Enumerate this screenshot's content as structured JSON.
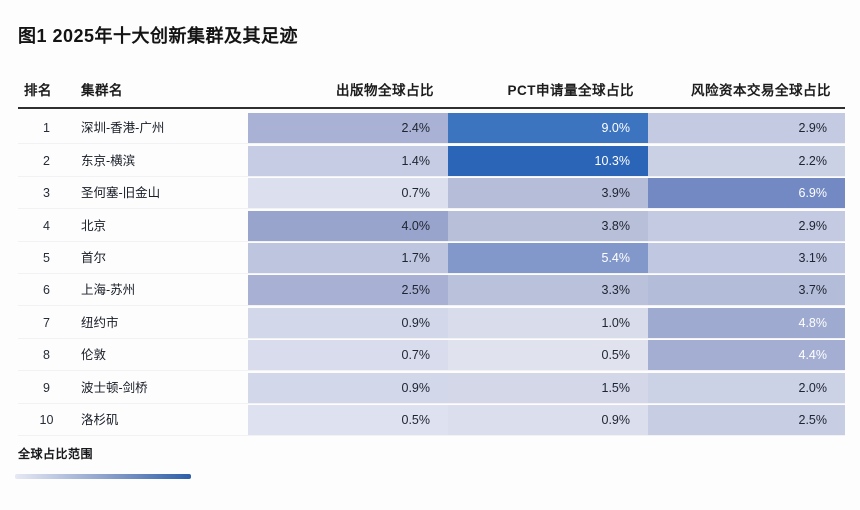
{
  "colors": {
    "page_bg": "#fdfdfe",
    "header_rule": "#2f2f2f",
    "text_dark": "#1e2430",
    "text_light": "#ffffff",
    "scale_min": "#e6e9f4",
    "scale_mid": "#8fa3cd",
    "scale_max": "#2b65b8"
  },
  "chart_data": {
    "type": "heatmap",
    "title": "图1 2025年十大创新集群及其足迹",
    "columns": [
      "排名",
      "集群名",
      "出版物全球占比",
      "PCT申请量全球占比",
      "风险资本交易全球占比"
    ],
    "legend_label": "全球占比范围",
    "legend_gradient": [
      "#e6e9f4",
      "#8fa3cd",
      "#2d5ea9"
    ],
    "value_format": "percent",
    "rows": [
      {
        "rank": "1",
        "name": "深圳-香港-广州",
        "values": [
          "2.4%",
          "9.0%",
          "2.9%"
        ],
        "values_num": [
          2.4,
          9.0,
          2.9
        ],
        "bg": [
          "#a9b2d4",
          "#3d74c0",
          "#c3cae2"
        ],
        "light": [
          false,
          true,
          false
        ]
      },
      {
        "rank": "2",
        "name": "东京-横滨",
        "values": [
          "1.4%",
          "10.3%",
          "2.2%"
        ],
        "values_num": [
          1.4,
          10.3,
          2.2
        ],
        "bg": [
          "#c6cce4",
          "#2b65b8",
          "#cbd1e5"
        ],
        "light": [
          false,
          true,
          false
        ]
      },
      {
        "rank": "3",
        "name": "圣何塞-旧金山",
        "values": [
          "0.7%",
          "3.9%",
          "6.9%"
        ],
        "values_num": [
          0.7,
          3.9,
          6.9
        ],
        "bg": [
          "#dbdfee",
          "#b6bdd8",
          "#7289c3"
        ],
        "light": [
          false,
          false,
          true
        ]
      },
      {
        "rank": "4",
        "name": "北京",
        "values": [
          "4.0%",
          "3.8%",
          "2.9%"
        ],
        "values_num": [
          4.0,
          3.8,
          2.9
        ],
        "bg": [
          "#99a4cc",
          "#b8bfd9",
          "#c3cae2"
        ],
        "light": [
          false,
          false,
          false
        ]
      },
      {
        "rank": "5",
        "name": "首尔",
        "values": [
          "1.7%",
          "5.4%",
          "3.1%"
        ],
        "values_num": [
          1.7,
          5.4,
          3.1
        ],
        "bg": [
          "#bec5df",
          "#8398ca",
          "#c0c7e0"
        ],
        "light": [
          false,
          true,
          false
        ]
      },
      {
        "rank": "6",
        "name": "上海-苏州",
        "values": [
          "2.5%",
          "3.3%",
          "3.7%"
        ],
        "values_num": [
          2.5,
          3.3,
          3.7
        ],
        "bg": [
          "#a8b1d3",
          "#bac1db",
          "#b3bcd8"
        ],
        "light": [
          false,
          false,
          false
        ]
      },
      {
        "rank": "7",
        "name": "纽约市",
        "values": [
          "0.9%",
          "1.0%",
          "4.8%"
        ],
        "values_num": [
          0.9,
          1.0,
          4.8
        ],
        "bg": [
          "#d2d8e9",
          "#d9dcea",
          "#9eaad0"
        ],
        "light": [
          false,
          false,
          true
        ]
      },
      {
        "rank": "8",
        "name": "伦敦",
        "values": [
          "0.7%",
          "0.5%",
          "4.4%"
        ],
        "values_num": [
          0.7,
          0.5,
          4.4
        ],
        "bg": [
          "#d8dcec",
          "#e0e3ee",
          "#a3aed2"
        ],
        "light": [
          false,
          false,
          true
        ]
      },
      {
        "rank": "9",
        "name": "波士顿-剑桥",
        "values": [
          "0.9%",
          "1.5%",
          "2.0%"
        ],
        "values_num": [
          0.9,
          1.5,
          2.0
        ],
        "bg": [
          "#d2d8e9",
          "#d3d7e8",
          "#ccd2e6"
        ],
        "light": [
          false,
          false,
          false
        ]
      },
      {
        "rank": "10",
        "name": "洛杉矶",
        "values": [
          "0.5%",
          "0.9%",
          "2.5%"
        ],
        "values_num": [
          0.5,
          0.9,
          2.5
        ],
        "bg": [
          "#dee1f0",
          "#dbdeec",
          "#c7cde3"
        ],
        "light": [
          false,
          false,
          false
        ]
      }
    ]
  }
}
